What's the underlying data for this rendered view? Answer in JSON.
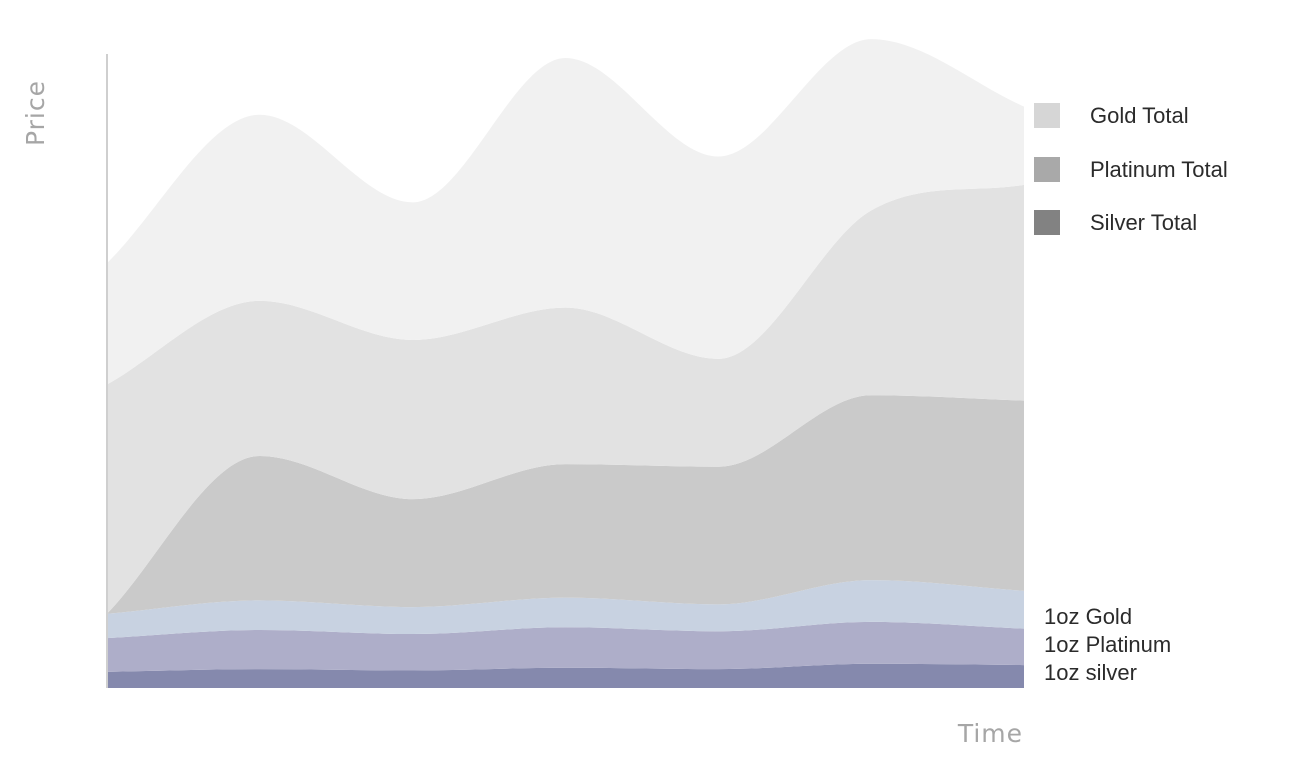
{
  "chart_data": {
    "type": "area",
    "stacked": true,
    "xlabel": "Time",
    "ylabel": "Price",
    "x": [
      0,
      1,
      2,
      3,
      4,
      5,
      6
    ],
    "series": [
      {
        "name": "1oz silver",
        "values": [
          12,
          14,
          13,
          15,
          14,
          18,
          17
        ],
        "color": "#8589ad"
      },
      {
        "name": "1oz Platinum",
        "values": [
          25,
          29,
          27,
          30,
          28,
          31,
          27
        ],
        "color": "#aeaec9"
      },
      {
        "name": "1oz Gold",
        "values": [
          18,
          22,
          20,
          22,
          20,
          31,
          28
        ],
        "color": "#c8d2e1"
      },
      {
        "name": "Silver Total",
        "values": [
          0,
          107,
          80,
          99,
          102,
          137,
          141
        ],
        "color": "#cacaca"
      },
      {
        "name": "Platinum Total",
        "values": [
          170,
          115,
          118,
          116,
          80,
          137,
          160
        ],
        "color": "#e2e2e2"
      },
      {
        "name": "Gold Total",
        "values": [
          90,
          138,
          102,
          185,
          150,
          127,
          58
        ],
        "color": "#f1f1f1"
      }
    ],
    "legend": {
      "placement": "top-right",
      "items": [
        {
          "label": "Gold Total",
          "color": "#d6d6d6"
        },
        {
          "label": "Platinum Total",
          "color": "#a9a9a9"
        },
        {
          "label": "Silver Total",
          "color": "#828282"
        }
      ]
    },
    "inline_labels": [
      "1oz Gold",
      "1oz Platinum",
      "1oz silver"
    ],
    "grid": false
  }
}
